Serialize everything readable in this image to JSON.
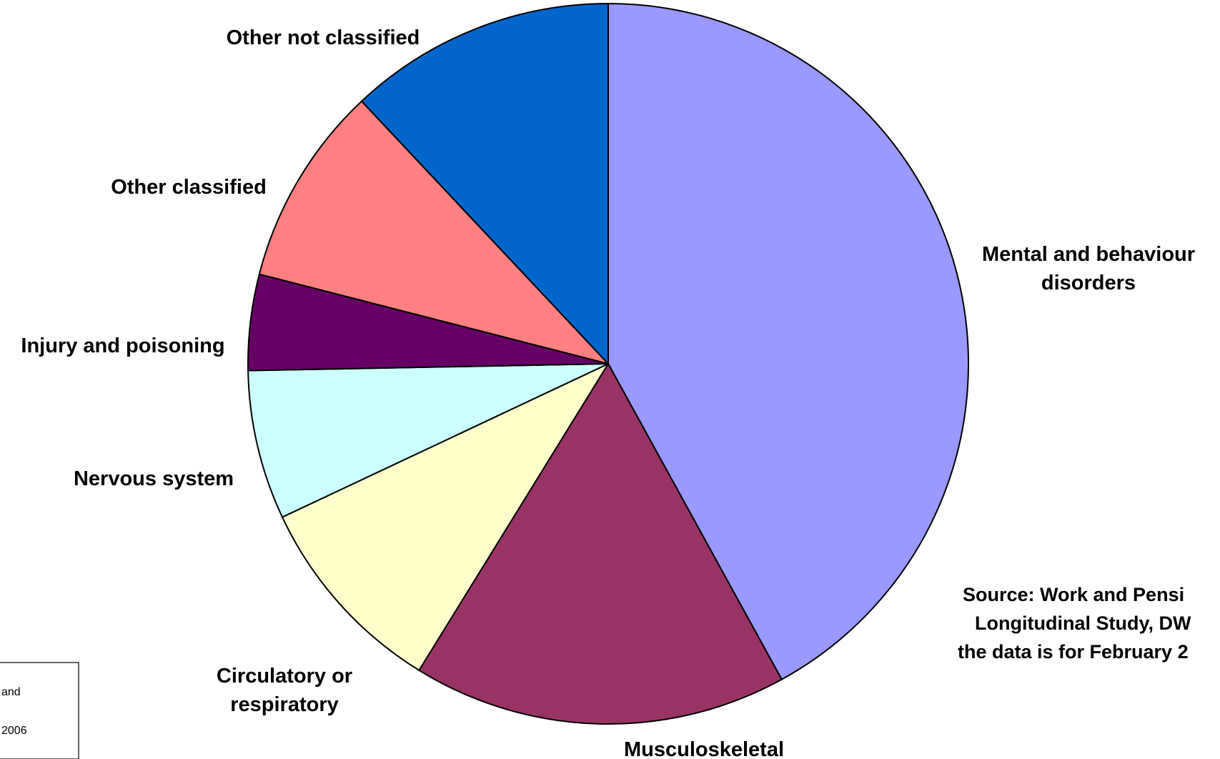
{
  "chart_data": {
    "type": "pie",
    "categories": [
      "Mental and behaviour disorders",
      "Musculoskeletal",
      "Circulatory or respiratory",
      "Nervous system",
      "Injury and poisoning",
      "Other classified",
      "Other not classified"
    ],
    "label_lines": [
      [
        "Mental and behaviour",
        "disorders"
      ],
      [
        "Musculoskeletal"
      ],
      [
        "Circulatory or",
        "respiratory"
      ],
      [
        "Nervous system"
      ],
      [
        "Injury and poisoning"
      ],
      [
        "Other classified"
      ],
      [
        "Other not classified"
      ]
    ],
    "values": [
      42.0,
      16.8,
      9.2,
      6.7,
      4.3,
      9.0,
      12.0
    ],
    "colors": [
      "#9999FF",
      "#993366",
      "#FFFFCC",
      "#CCFFFF",
      "#660066",
      "#FF8080",
      "#0066CC"
    ],
    "start_angle": "12 o'clock",
    "direction": "clockwise",
    "annotations": {
      "source_lines": [
        "Source: Work and Pensi",
        "Longitudinal Study, DW",
        "the data is for February 2"
      ],
      "partial_note_lines": [
        "and",
        "2006"
      ]
    }
  }
}
